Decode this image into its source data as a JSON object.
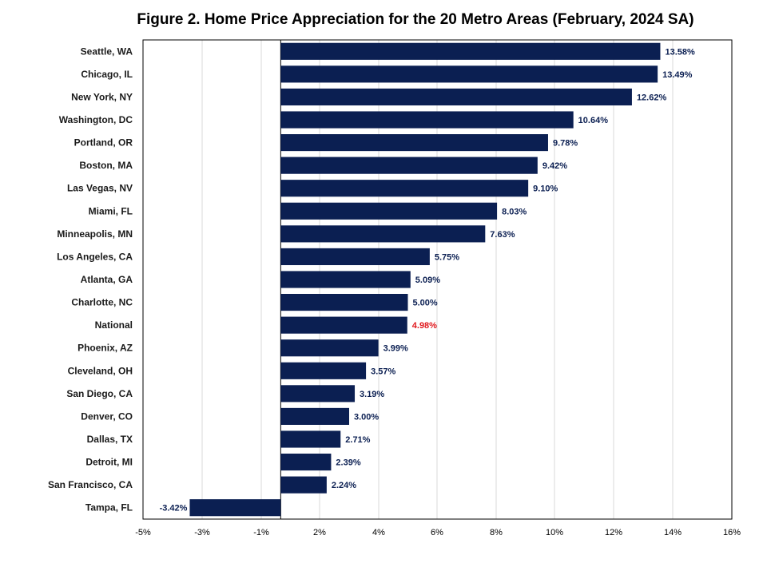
{
  "chart_data": {
    "type": "bar",
    "orientation": "horizontal",
    "title": "Figure 2. Home Price Appreciation  for the 20 Metro  Areas (February,  2024 SA)",
    "xlabel": "",
    "ylabel": "",
    "xlim": [
      -5,
      16
    ],
    "x_ticks": [
      -5,
      -3,
      -1,
      2,
      4,
      6,
      8,
      10,
      12,
      14,
      16
    ],
    "x_tick_labels": [
      "-5%",
      "-3%",
      "-1%",
      "2%",
      "4%",
      "6%",
      "8%",
      "10%",
      "12%",
      "14%",
      "16%"
    ],
    "grid": "vertical",
    "legend": "none",
    "bar_color": "#0b1f52",
    "highlight_color": "#e0171c",
    "categories": [
      "Seattle, WA",
      "Chicago, IL",
      "New York, NY",
      "Washington, DC",
      "Portland, OR",
      "Boston, MA",
      "Las Vegas, NV",
      "Miami, FL",
      "Minneapolis, MN",
      "Los Angeles, CA",
      "Atlanta, GA",
      "Charlotte, NC",
      "National",
      "Phoenix, AZ",
      "Cleveland, OH",
      "San Diego, CA",
      "Denver, CO",
      "Dallas, TX",
      "Detroit, MI",
      "San Francisco, CA",
      "Tampa, FL"
    ],
    "values": [
      13.58,
      13.49,
      12.62,
      10.64,
      9.78,
      9.42,
      9.1,
      8.03,
      7.63,
      5.75,
      5.09,
      5.0,
      4.98,
      3.99,
      3.57,
      3.19,
      3.0,
      2.71,
      2.39,
      2.24,
      -3.42
    ],
    "value_labels": [
      "13.58%",
      "13.49%",
      "12.62%",
      "10.64%",
      "9.78%",
      "9.42%",
      "9.10%",
      "8.03%",
      "7.63%",
      "5.75%",
      "5.09%",
      "5.00%",
      "4.98%",
      "3.99%",
      "3.57%",
      "3.19%",
      "3.00%",
      "2.71%",
      "2.39%",
      "2.24%",
      "-3.42%"
    ],
    "highlight_category": "National"
  }
}
